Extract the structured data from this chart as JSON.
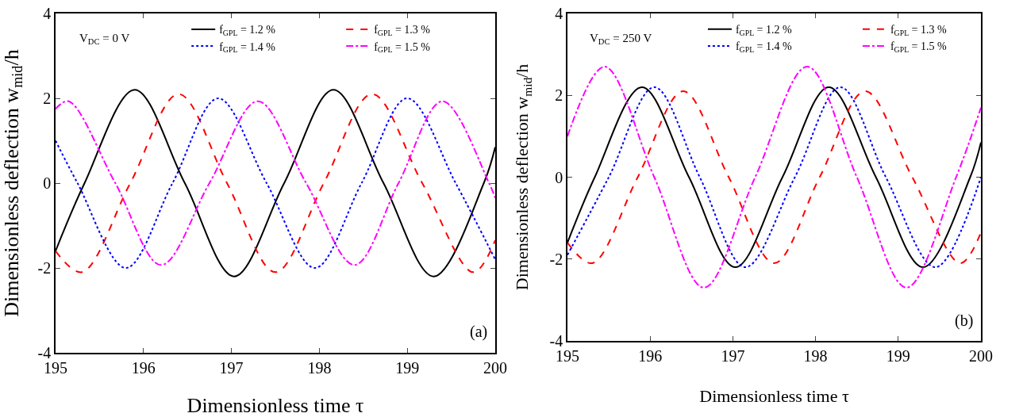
{
  "chart_data": [
    {
      "type": "line",
      "xlabel": "Dimensionless time τ",
      "ylabel": "Dimensionless deflection w$_{mid}$/h",
      "xlim": [
        195,
        200
      ],
      "xticks": [
        195,
        196,
        197,
        198,
        199,
        200
      ],
      "ylim": [
        -4,
        4
      ],
      "yticks": [
        -4,
        -2,
        0,
        2,
        4
      ],
      "grid": false,
      "legend": "top",
      "annotations": [
        "V$_{DC}$ = 0 V",
        "(a)"
      ],
      "series": [
        {
          "name": "f$_{GPL}$ = 1.2 %",
          "color": "#000000",
          "line_style": "solid",
          "x": [
            195,
            195.33,
            195.9,
            196.47,
            197.03,
            197.6,
            198.16,
            198.73,
            199.3,
            199.87,
            200
          ],
          "values": [
            -1.6,
            0,
            2.2,
            0,
            -2.2,
            0,
            2.2,
            0,
            -2.2,
            0,
            0.85
          ]
        },
        {
          "name": "f$_{GPL}$ = 1.3 %",
          "color": "#ff0000",
          "line_style": "dashed",
          "x": [
            195,
            195.3,
            195.85,
            196.4,
            196.95,
            197.5,
            198.05,
            198.6,
            199.17,
            199.75,
            200
          ],
          "values": [
            -1.6,
            -2.1,
            0,
            2.1,
            0,
            -2.1,
            0,
            2.1,
            0,
            -2.1,
            -1.35
          ]
        },
        {
          "name": "f$_{GPL}$ = 1.4 %",
          "color": "#0000ff",
          "line_style": "dotted",
          "x": [
            195,
            195.25,
            195.8,
            196.33,
            196.85,
            197.4,
            197.95,
            198.48,
            199,
            199.55,
            200
          ],
          "values": [
            1,
            0,
            -2,
            0,
            2,
            0,
            -2,
            0,
            2,
            0,
            -1.8
          ]
        },
        {
          "name": "f$_{GPL}$ = 1.5 %",
          "color": "#ff00ff",
          "line_style": "dashdot",
          "x": [
            195,
            195.15,
            195.68,
            196.2,
            196.75,
            197.3,
            197.85,
            198.4,
            198.9,
            199.4,
            199.93,
            200
          ],
          "values": [
            1.75,
            1.93,
            0,
            -1.93,
            0,
            1.93,
            0,
            -1.93,
            0,
            1.93,
            0,
            -0.35
          ]
        }
      ]
    },
    {
      "type": "line",
      "xlabel": "Dimensionless time τ",
      "ylabel": "Dimensionless deflection w$_{mid}$/h",
      "xlim": [
        195,
        200
      ],
      "xticks": [
        195,
        196,
        197,
        198,
        199,
        200
      ],
      "ylim": [
        -4,
        4
      ],
      "yticks": [
        -4,
        -2,
        0,
        2,
        4
      ],
      "grid": false,
      "legend": "top",
      "annotations": [
        "V$_{DC}$ = 250 V",
        "(b)"
      ],
      "series": [
        {
          "name": "f$_{GPL}$ = 1.2 %",
          "color": "#000000",
          "line_style": "solid",
          "x": [
            195,
            195.33,
            195.9,
            196.47,
            197.03,
            197.6,
            198.16,
            198.73,
            199.3,
            199.87,
            200
          ],
          "values": [
            -1.6,
            0,
            2.2,
            0,
            -2.2,
            0,
            2.2,
            0,
            -2.2,
            0,
            0.85
          ]
        },
        {
          "name": "f$_{GPL}$ = 1.3 %",
          "color": "#ff0000",
          "line_style": "dashed",
          "x": [
            195,
            195.3,
            195.85,
            196.4,
            196.95,
            197.5,
            198.05,
            198.6,
            199.17,
            199.75,
            200
          ],
          "values": [
            -1.6,
            -2.1,
            0,
            2.1,
            0,
            -2.1,
            0,
            2.1,
            0,
            -2.1,
            -1.35
          ]
        },
        {
          "name": "f$_{GPL}$ = 1.4 %",
          "color": "#0000ff",
          "line_style": "dotted",
          "x": [
            195,
            195.5,
            196.05,
            196.6,
            197.15,
            197.75,
            198.3,
            198.85,
            199.45,
            200
          ],
          "values": [
            -1.9,
            0,
            2.2,
            0,
            -2.2,
            0,
            2.2,
            0,
            -2.2,
            0
          ]
        },
        {
          "name": "f$_{GPL}$ = 1.5 %",
          "color": "#ff00ff",
          "line_style": "dashdot",
          "x": [
            195,
            195.45,
            196.05,
            196.65,
            197.27,
            197.9,
            198.5,
            199.1,
            199.7,
            200
          ],
          "values": [
            1,
            2.7,
            0,
            -2.7,
            0,
            2.7,
            0,
            -2.7,
            0,
            1.7
          ]
        }
      ]
    }
  ]
}
